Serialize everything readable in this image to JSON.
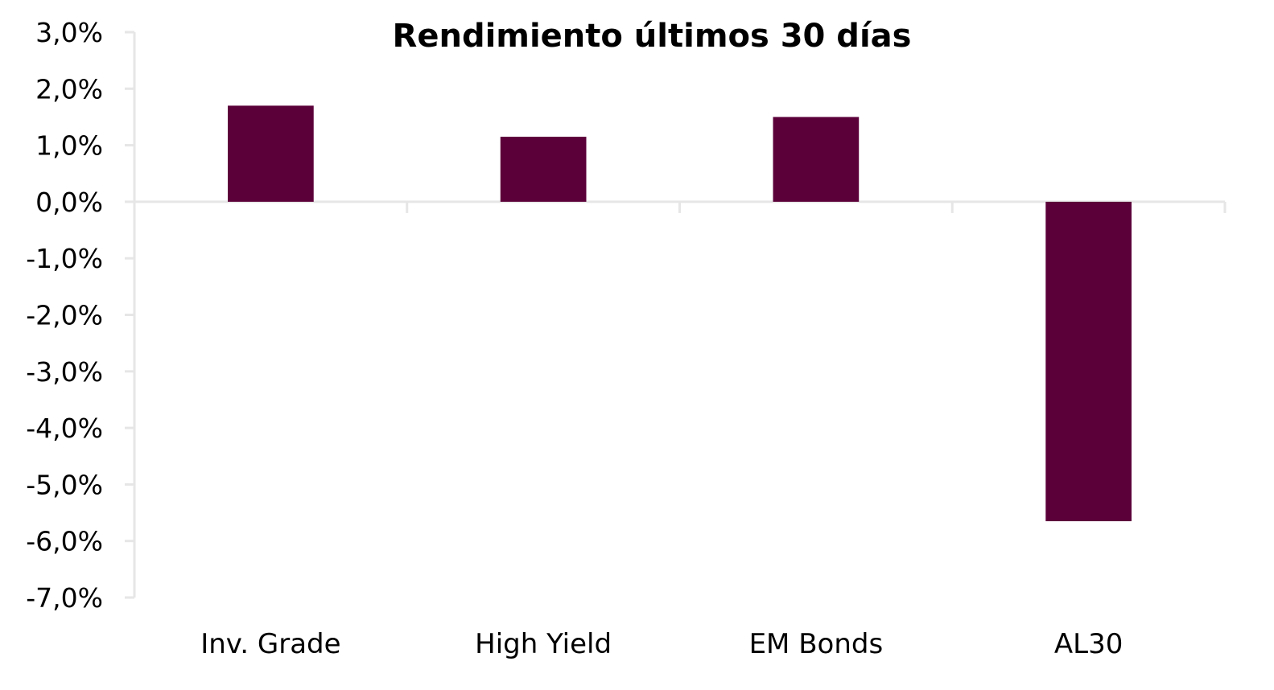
{
  "chart_data": {
    "type": "bar",
    "title": "Rendimiento últimos 30 días",
    "xlabel": "",
    "ylabel": "",
    "categories": [
      "Inv. Grade",
      "High Yield",
      "EM Bonds",
      "AL30"
    ],
    "values": [
      1.7,
      1.15,
      1.5,
      -5.65
    ],
    "ylim": [
      -7.0,
      3.0
    ],
    "yticks": [
      3.0,
      2.0,
      1.0,
      0.0,
      -1.0,
      -2.0,
      -3.0,
      -4.0,
      -5.0,
      -6.0,
      -7.0
    ],
    "ytick_labels": [
      "3,0%",
      "2,0%",
      "1,0%",
      "0,0%",
      "-1,0%",
      "-2,0%",
      "-3,0%",
      "-4,0%",
      "-5,0%",
      "-6,0%",
      "-7,0%"
    ],
    "grid": false,
    "legend": "none",
    "bar_color": "#5c003a",
    "axis_color": "#e6e6e6"
  }
}
